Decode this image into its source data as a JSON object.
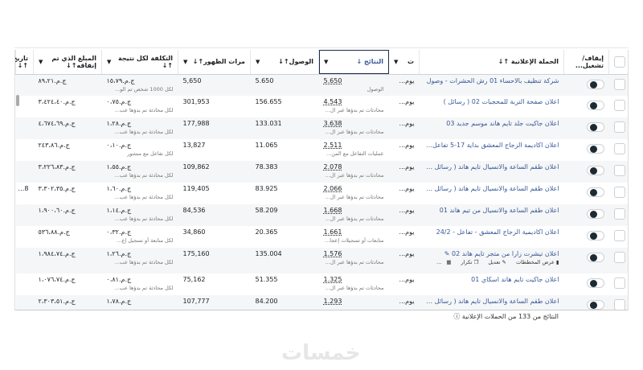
{
  "headers": {
    "checkbox": "",
    "toggle": "إيقاف/ تشغيل...",
    "campaign": "الحملة الإعلانية ↑↓",
    "delivery": "ت",
    "results": "النتائج ↓",
    "reach": "الوصول↑↓",
    "impressions": "مرات الظهور↑↓",
    "cost": "التكلفة لكل نتيجة ↑↓",
    "spent": "المبلغ الذي تم إنفاقه↑↓",
    "date": "تاريخ ↑↓"
  },
  "rows": [
    {
      "campaign": "شركة تنظيف بالاحساء 01 رش الحشرات - وصول",
      "delivery": "يوم...",
      "results": "5.650",
      "results_sub": "الوصول",
      "reach": "5.650",
      "impressions": "5,650",
      "cost": "ج.م.١٥،٧٩",
      "cost_sub": "لكل 1000 شخص تم الو...",
      "spent": "ج.م.٨٩،٢١",
      "date": ""
    },
    {
      "campaign": "اعلان صفحة التربة للمحجبات 02 ( رسائل )",
      "delivery": "يوم...",
      "results": "4.543",
      "results_sub": "محادثات تم بدؤها عبر ال...",
      "reach": "156.655",
      "impressions": "301,953",
      "cost": "ج.م.٠،٧٥",
      "cost_sub": "لكل محادثة تم بدؤها عب...",
      "spent": "ج.م.٣،٤٢٤،٤٠",
      "date": ""
    },
    {
      "campaign": "اعلان جاكيت جلد تايم هاند موسم جديد 03",
      "delivery": "يوم...",
      "results": "3.638",
      "results_sub": "محادثات تم بدؤها عبر ال...",
      "reach": "133.031",
      "impressions": "177,988",
      "cost": "ج.م.١،٢٨",
      "cost_sub": "لكل محادثة تم بدؤها عب...",
      "spent": "ج.م.٤،٦٧٤،٦٩",
      "date": ""
    },
    {
      "campaign": "اعلان اكاديمة الزجاج المعشق بداية 17-5 تفاعل توق...",
      "delivery": "يوم...",
      "results": "2.511",
      "results_sub": "عمليات التفاعل مع المن...",
      "reach": "11.065",
      "impressions": "13,827",
      "cost": "ج.م.٠،١٠",
      "cost_sub": "لكل تفاعل مع منشور",
      "spent": "ج.م.٢٤٣،٨٦",
      "date": ""
    },
    {
      "campaign": "اعلان طقم الساعة والانسيال تايم هاند ( رسائل ) 03",
      "delivery": "يوم...",
      "results": "2.078",
      "results_sub": "محادثات تم بدؤها عبر ال...",
      "reach": "78.383",
      "impressions": "109,862",
      "cost": "ج.م.١،٥٥",
      "cost_sub": "لكل محادثة تم بدؤها عب...",
      "spent": "ج.م.٣،٢٢٦،٨٣",
      "date": ""
    },
    {
      "campaign": "اعلان طقم الساعة والانسيال تايم هاند ( رسائل ) 04",
      "delivery": "يوم...",
      "results": "2.066",
      "results_sub": "محادثات تم بدؤها عبر ال...",
      "reach": "83.925",
      "impressions": "119,405",
      "cost": "ج.م.١،٦٠",
      "cost_sub": "لكل محادثة تم بدؤها عب...",
      "spent": "ج.م.٣،٣٠٢،٣٥",
      "date": "28"
    },
    {
      "campaign": "اعلان طقم الساعة والانسيال من تيم هاند 01",
      "delivery": "يوم...",
      "results": "1.668",
      "results_sub": "محادثات تم بدؤها عبر ال...",
      "reach": "58.209",
      "impressions": "84,536",
      "cost": "ج.م.١،١٤",
      "cost_sub": "لكل محادثة تم بدؤها عب...",
      "spent": "ج.م.١،٩٠٠،٦٠",
      "date": ""
    },
    {
      "campaign": "اعلان اكاديمية الزجاج المعشق - تفاعل - 24/2",
      "delivery": "يوم...",
      "results": "1.661",
      "results_sub": "متابعات أو تسجيلات إعجا...",
      "reach": "20.365",
      "impressions": "34,860",
      "cost": "ج.م.٠،٣٢",
      "cost_sub": "لكل متابعة أو تسجيل إع...",
      "spent": "ج.م.٥٣٦،٨٨",
      "date": ""
    },
    {
      "campaign": "اعلان تيشرت زارا من متجر تايم هاند 02 ✎",
      "delivery": "يوم...",
      "results": "1.576",
      "results_sub": "محادثات تم بدؤها عبر ال...",
      "reach": "135.004",
      "impressions": "175,160",
      "cost": "ج.م.١،٢٦",
      "cost_sub": "لكل محادثة تم بدؤها عب...",
      "spent": "ج.م.١،٩٨٤،٧٤",
      "date": "",
      "hover": true
    },
    {
      "campaign": "اعلان جاكيت تايم هاند اسكاي 01",
      "delivery": "يوم...",
      "results": "1.325",
      "results_sub": "محادثات تم بدؤها عبر ال...",
      "reach": "51.355",
      "impressions": "75,162",
      "cost": "ج.م.٠،٨١",
      "cost_sub": "لكل محادثة تم بدؤها عب...",
      "spent": "ج.م.١،٠٧٦،٧٤",
      "date": ""
    },
    {
      "campaign": "اعلان طقم الساعة والانسيال تايم هاند ( رسائل ) 02",
      "delivery": "يوم...",
      "results": "1.293",
      "results_sub": "",
      "reach": "84.200",
      "impressions": "107,777",
      "cost": "ج.م.١،٧٨",
      "cost_sub": "",
      "spent": "ج.م.٢،٣٠٣،٥١",
      "date": ""
    }
  ],
  "row_actions": {
    "charts": "عرض المخططات",
    "edit": "تعديل",
    "duplicate": "تكرار",
    "more": "..."
  },
  "footer": {
    "text": "النتائج من 133 من الحملات الإعلانية"
  },
  "watermark": "خمسات",
  "colors": {
    "link": "#385898",
    "toggle": "#1c2b33"
  }
}
